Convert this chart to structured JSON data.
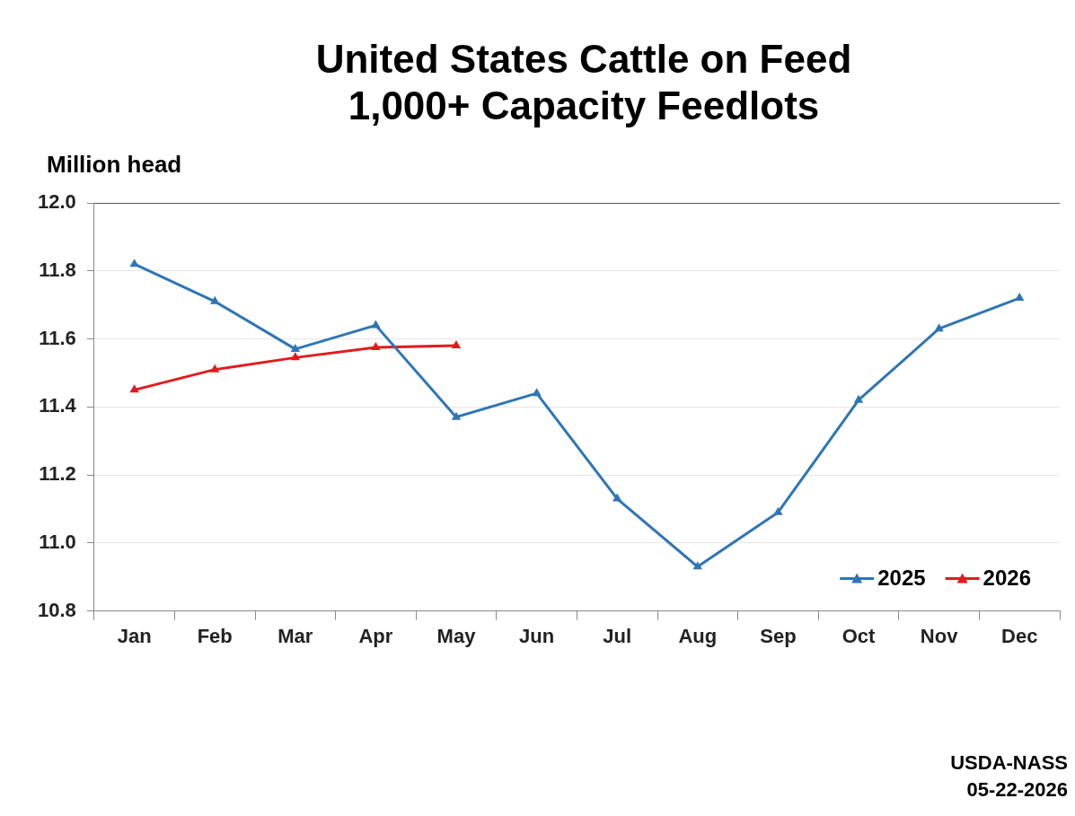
{
  "chart_data": {
    "type": "line",
    "title": "United States Cattle on Feed",
    "subtitle": "1,000+ Capacity Feedlots",
    "ylabel": "Million head",
    "categories": [
      "Jan",
      "Feb",
      "Mar",
      "Apr",
      "May",
      "Jun",
      "Jul",
      "Aug",
      "Sep",
      "Oct",
      "Nov",
      "Dec"
    ],
    "series": [
      {
        "name": "2025",
        "color": "#2e75b6",
        "values": [
          11.82,
          11.71,
          11.57,
          11.64,
          11.37,
          11.44,
          11.13,
          10.93,
          11.09,
          11.42,
          11.63,
          11.72
        ]
      },
      {
        "name": "2026",
        "color": "#e31a1c",
        "values": [
          11.45,
          11.51,
          11.545,
          11.575,
          11.58,
          null,
          null,
          null,
          null,
          null,
          null,
          null
        ]
      }
    ],
    "ylim": [
      10.8,
      12.0
    ],
    "yticks": [
      {
        "value": 10.8,
        "label": "10.8"
      },
      {
        "value": 11,
        "label": "11.0"
      },
      {
        "value": 11.2,
        "label": "11.2"
      },
      {
        "value": 11.4,
        "label": "11.4"
      },
      {
        "value": 11.6,
        "label": "11.6"
      },
      {
        "value": 11.8,
        "label": "11.8"
      },
      {
        "value": 12,
        "label": "12.0"
      }
    ],
    "grid": "y",
    "legend": "bottom right",
    "marker": "triangle",
    "line_style": "solid",
    "annotations": [
      "USDA-NASS",
      "05-22-2026"
    ]
  }
}
